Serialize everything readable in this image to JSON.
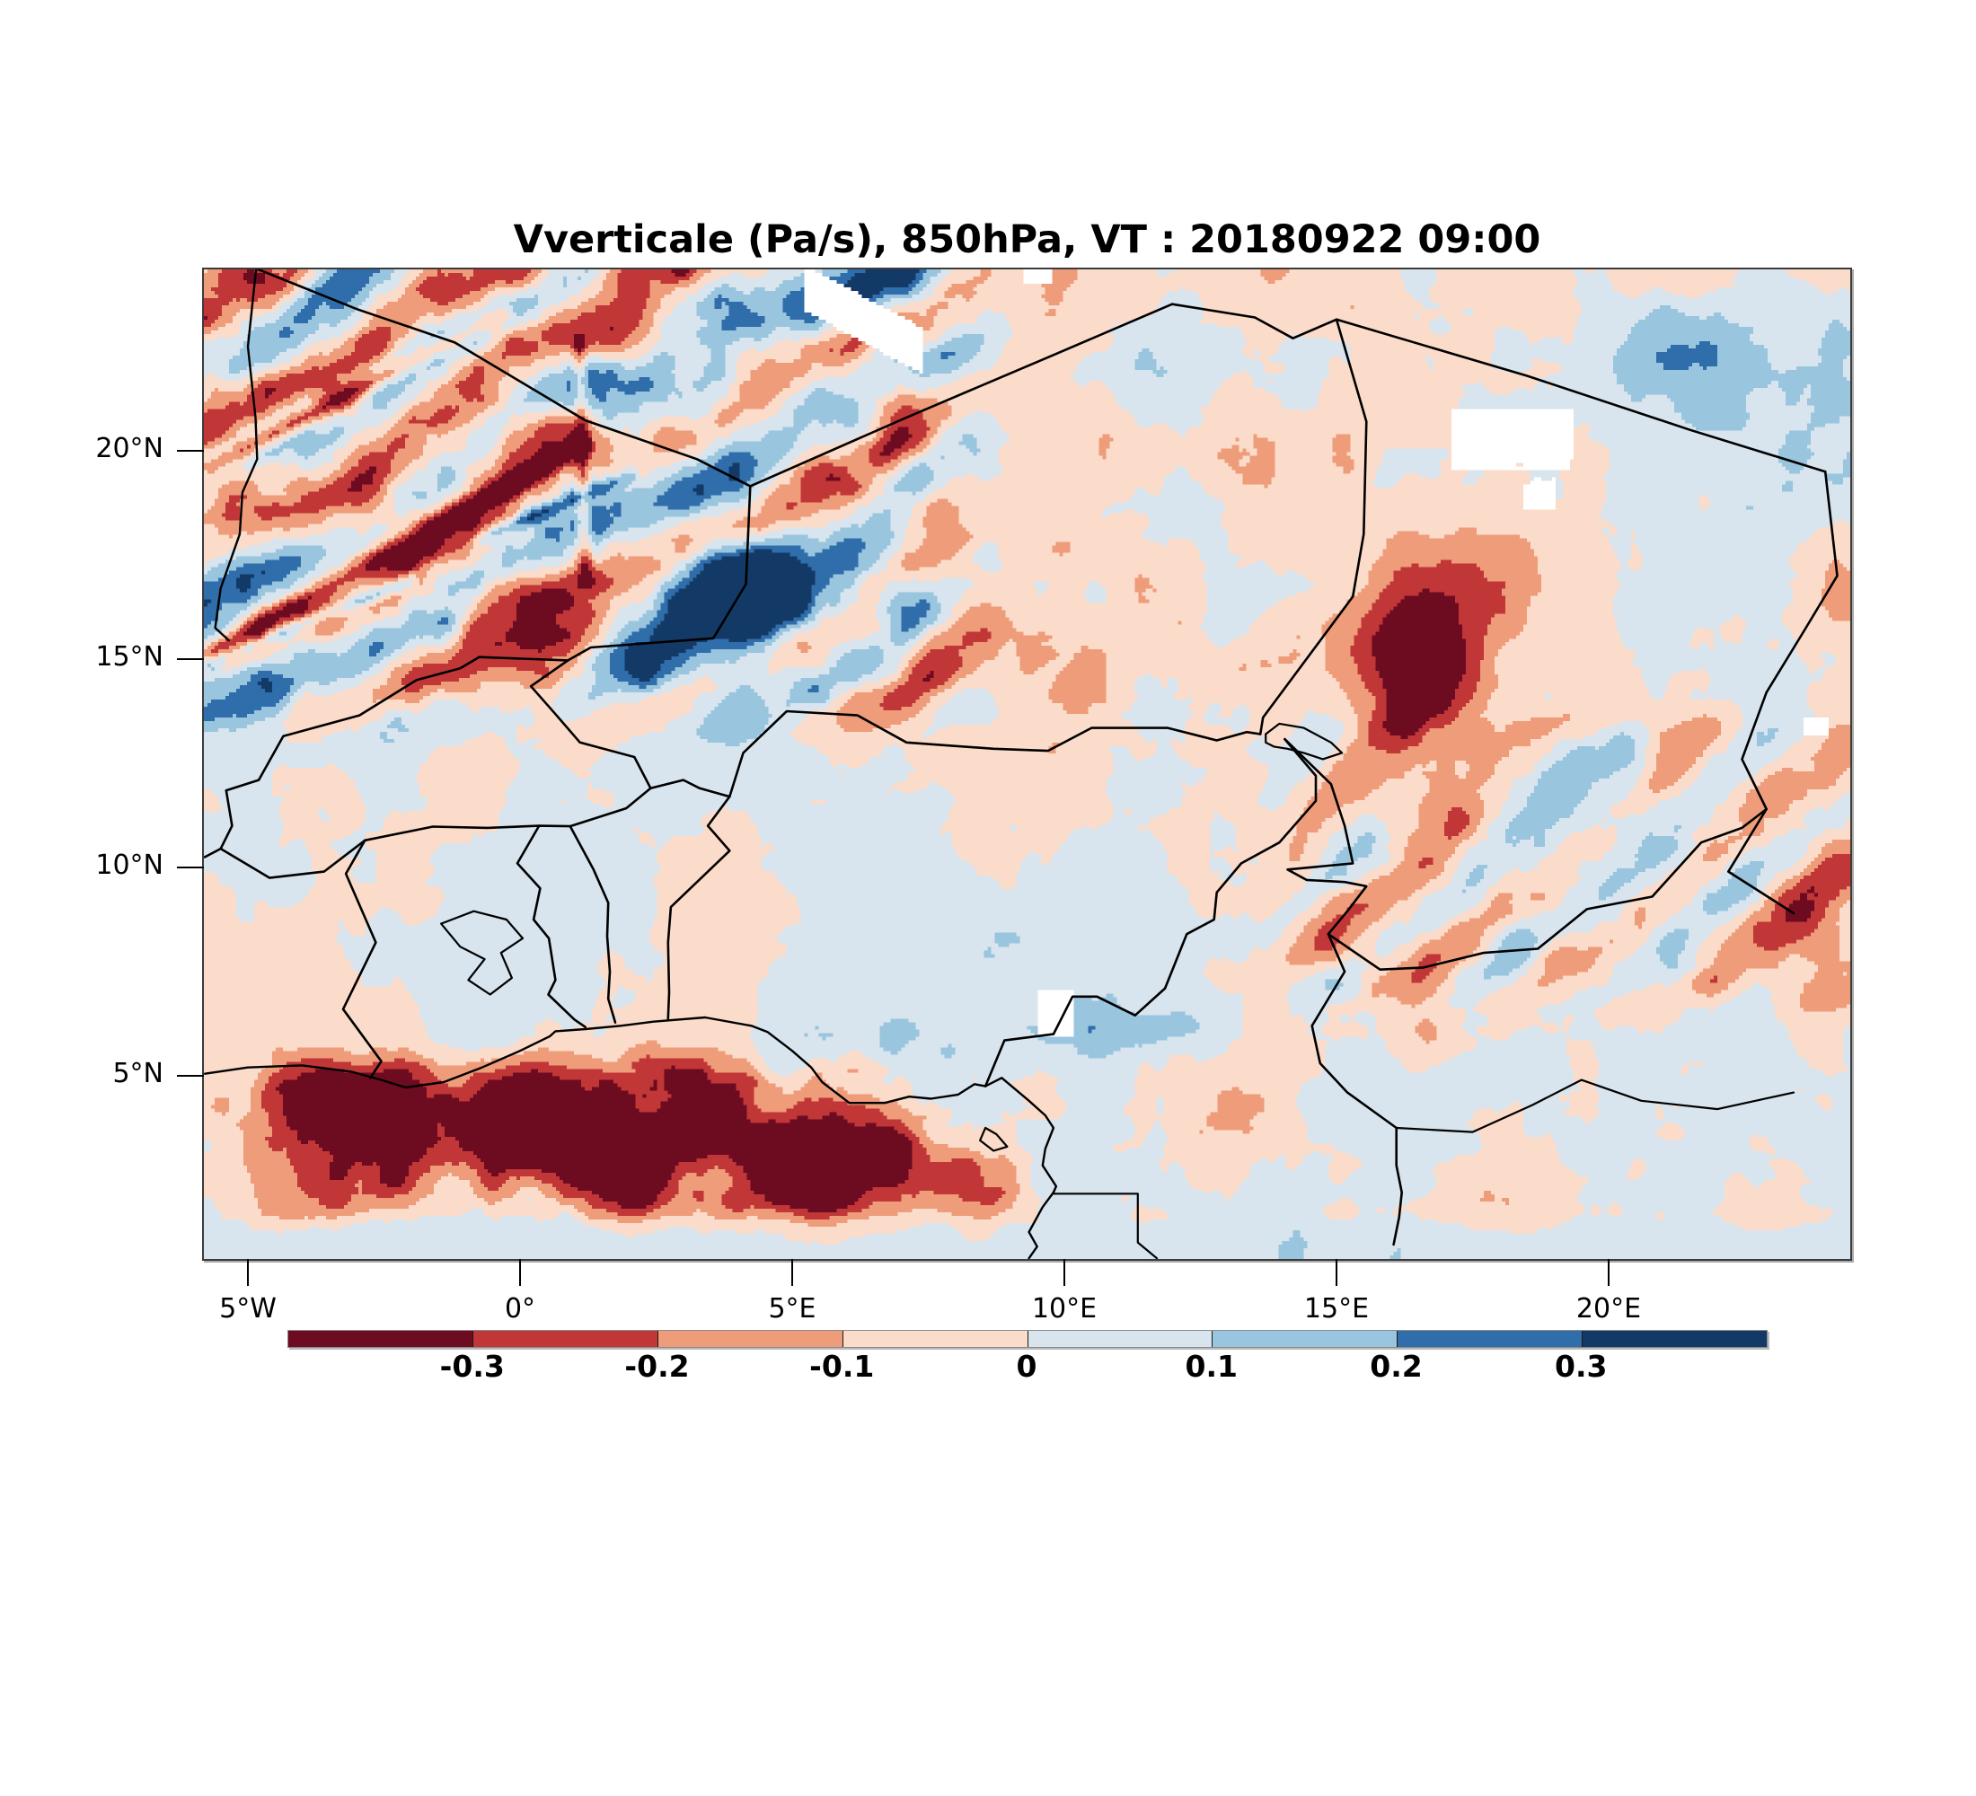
{
  "title": "Vverticale (Pa/s), 850hPa, VT : 20180922  09:00",
  "chart_data": {
    "type": "heatmap",
    "title": "Vverticale (Pa/s), 850hPa, VT : 20180922  09:00",
    "variable": "Vverticale",
    "units": "Pa/s",
    "pressure_level": "850hPa",
    "valid_time_label": "VT : 20180922  09:00",
    "x_tick_labels": [
      "5°W",
      "0°",
      "5°E",
      "10°E",
      "15°E",
      "20°E"
    ],
    "x_tick_lons": [
      -5,
      0,
      5,
      10,
      15,
      20
    ],
    "y_tick_labels": [
      "5°N",
      "10°N",
      "15°N",
      "20°N"
    ],
    "y_tick_lats": [
      5,
      10,
      15,
      20
    ],
    "lon_range": [
      -5.8,
      24.4
    ],
    "lat_range": [
      0.6,
      24.4
    ],
    "grid": false,
    "legend_position": "bottom",
    "colorbar": {
      "orientation": "horizontal",
      "tick_labels": [
        "-0.3",
        "-0.2",
        "-0.1",
        "0",
        "0.1",
        "0.2",
        "0.3"
      ],
      "tick_values": [
        -0.3,
        -0.2,
        -0.1,
        0,
        0.1,
        0.2,
        0.3
      ],
      "colors": [
        "#6d0b21",
        "#c13637",
        "#ee9c7a",
        "#fbdcca",
        "#d8e5ee",
        "#99c5de",
        "#306dab",
        "#133a67"
      ],
      "missing_color": "#ffffff",
      "line_color": "#000000"
    }
  }
}
